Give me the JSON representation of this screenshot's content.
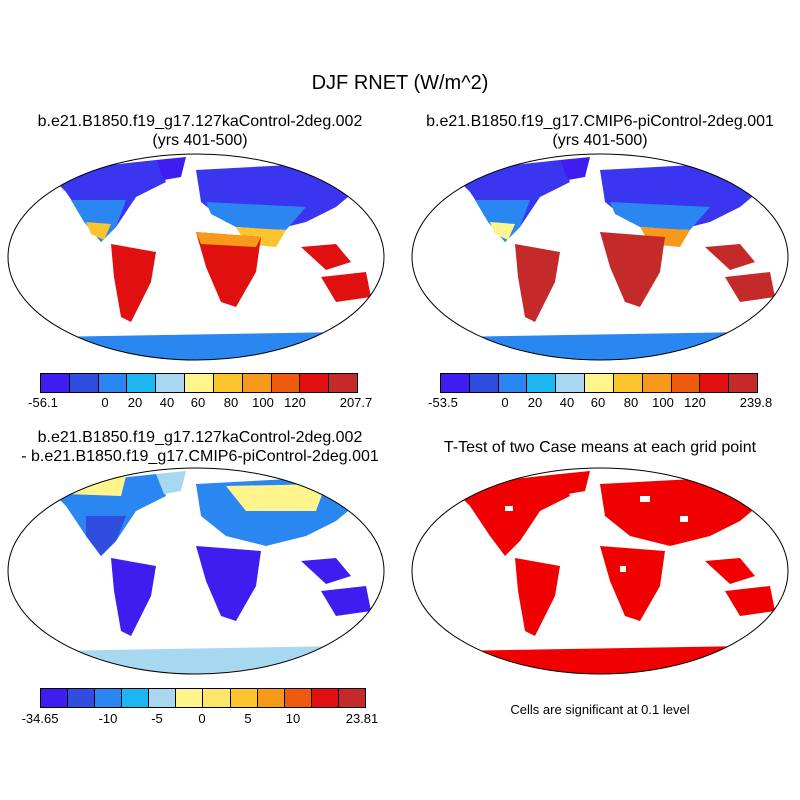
{
  "title": "DJF RNET (W/m^2)",
  "panels": [
    {
      "title_line1": "b.e21.B1850.f19_g17.127kaControl-2deg.002",
      "title_line2": "(yrs 401-500)"
    },
    {
      "title_line1": "b.e21.B1850.f19_g17.CMIP6-piControl-2deg.001",
      "title_line2": "(yrs 401-500)"
    },
    {
      "title_line1": "b.e21.B1850.f19_g17.127kaControl-2deg.002",
      "title_line2": "- b.e21.B1850.f19_g17.CMIP6-piControl-2deg.001"
    },
    {
      "title_line1": "T-Test of two Case means at each grid point",
      "title_line2": ""
    }
  ],
  "colorbars": [
    {
      "colors": [
        "#3f1cf0",
        "#2f4ee0",
        "#2a86f0",
        "#1cb6f3",
        "#a8d8f0",
        "#fff58c",
        "#fbc42c",
        "#f7991a",
        "#ee5a10",
        "#e01010",
        "#c52a2a"
      ],
      "labels": [
        "-56.1",
        "0",
        "20",
        "40",
        "60",
        "80",
        "100",
        "120",
        "207.7"
      ]
    },
    {
      "colors": [
        "#3f1cf0",
        "#2f4ee0",
        "#2a86f0",
        "#1cb6f3",
        "#a8d8f0",
        "#fff58c",
        "#fbc42c",
        "#f7991a",
        "#ee5a10",
        "#e01010",
        "#c52a2a"
      ],
      "labels": [
        "-53.5",
        "0",
        "20",
        "40",
        "60",
        "80",
        "100",
        "120",
        "239.8"
      ]
    },
    {
      "colors": [
        "#3f1cf0",
        "#2f4ee0",
        "#2a86f0",
        "#1cb6f3",
        "#a8d8f0",
        "#fff58c",
        "#fbe56a",
        "#fbc42c",
        "#f7991a",
        "#ee5a10",
        "#e01010",
        "#c52a2a"
      ],
      "labels": [
        "-34.65",
        "-10",
        "-5",
        "0",
        "5",
        "10",
        "23.81"
      ]
    }
  ],
  "significance_note": "Cells are significant at 0.1 level"
}
